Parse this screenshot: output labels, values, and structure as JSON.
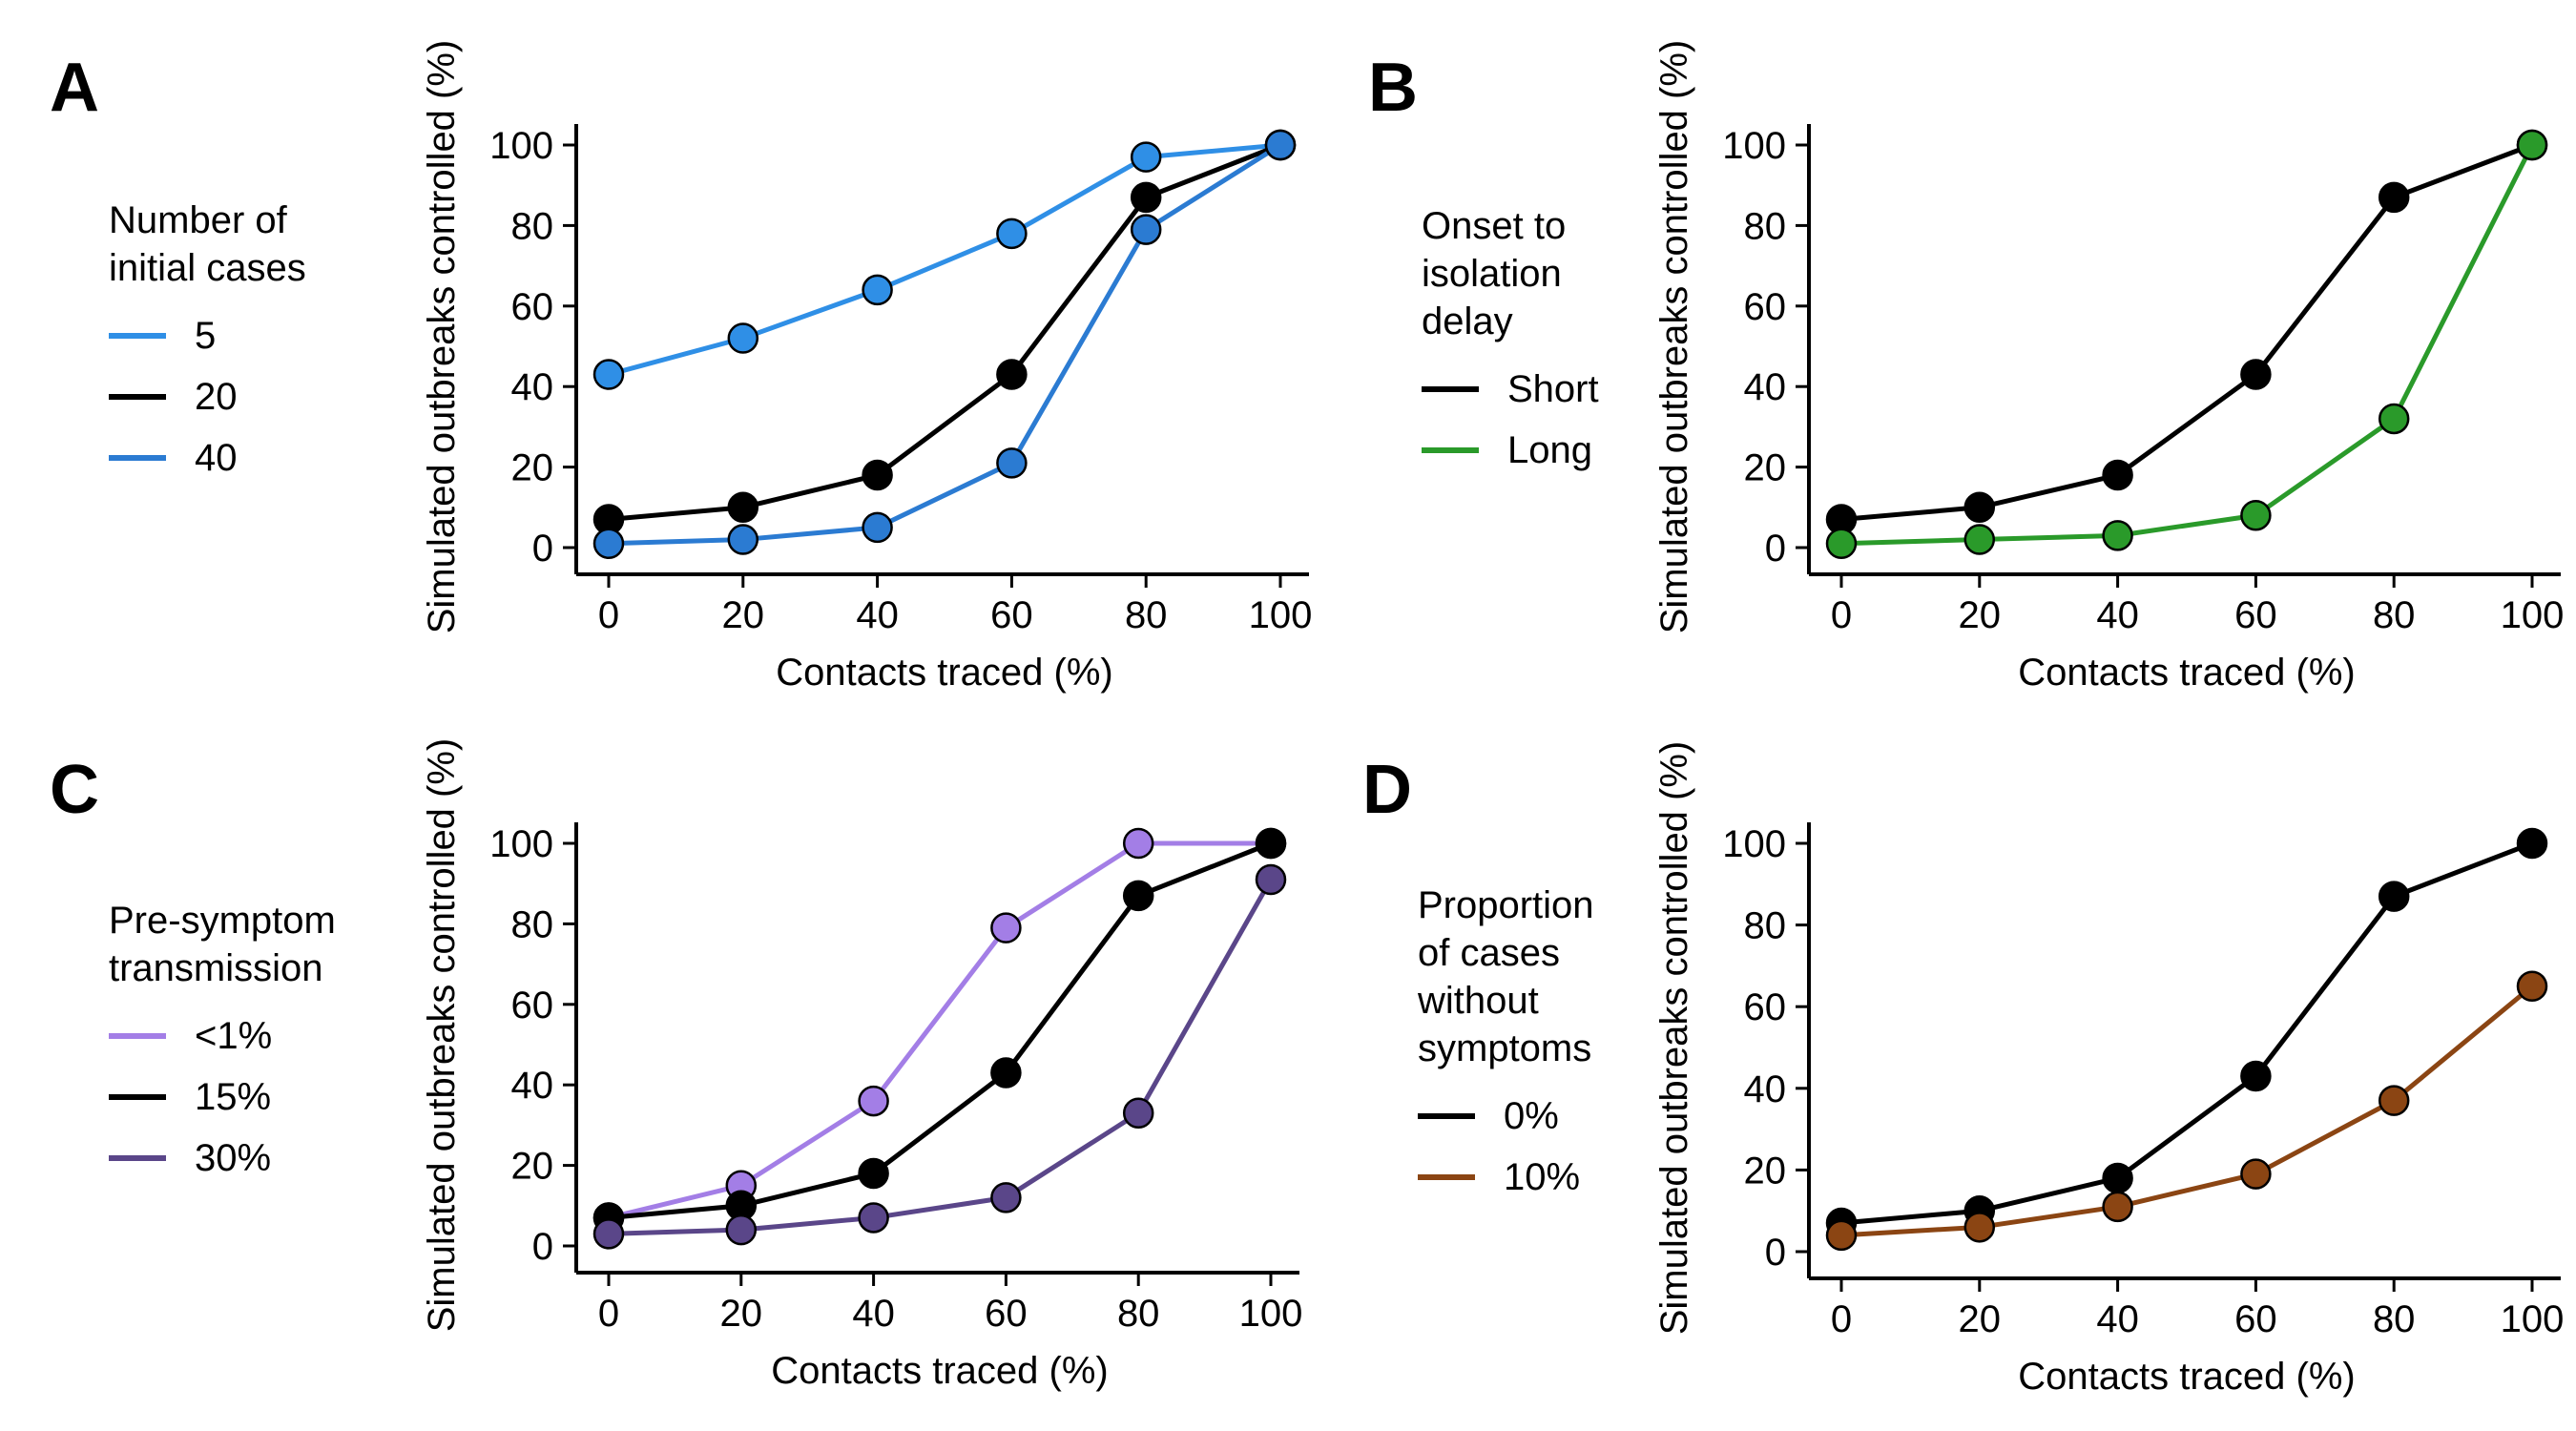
{
  "chart_data": [
    {
      "panel_label": "A",
      "type": "line",
      "legend_title": "Number of\ninitial cases",
      "xlabel": "Contacts traced (%)",
      "ylabel": "Simulated outbreaks controlled (%)",
      "x": [
        0,
        20,
        40,
        60,
        80,
        100
      ],
      "xlim": [
        0,
        100
      ],
      "ylim": [
        0,
        100
      ],
      "xticks": [
        "0",
        "20",
        "40",
        "60",
        "80",
        "100"
      ],
      "yticks": [
        "0",
        "20",
        "40",
        "60",
        "80",
        "100"
      ],
      "grid": false,
      "legend_position": "left",
      "series": [
        {
          "name": "5",
          "color": "#2f8fe6",
          "values": [
            43,
            52,
            64,
            78,
            97,
            100
          ]
        },
        {
          "name": "20",
          "color": "#000000",
          "values": [
            7,
            10,
            18,
            43,
            87,
            100
          ]
        },
        {
          "name": "40",
          "color": "#2b7bd2",
          "values": [
            1,
            2,
            5,
            21,
            79,
            100
          ]
        }
      ]
    },
    {
      "panel_label": "B",
      "type": "line",
      "legend_title": "Onset to\nisolation\ndelay",
      "xlabel": "Contacts traced (%)",
      "ylabel": "Simulated outbreaks controlled (%)",
      "x": [
        0,
        20,
        40,
        60,
        80,
        100
      ],
      "xlim": [
        0,
        100
      ],
      "ylim": [
        0,
        100
      ],
      "xticks": [
        "0",
        "20",
        "40",
        "60",
        "80",
        "100"
      ],
      "yticks": [
        "0",
        "20",
        "40",
        "60",
        "80",
        "100"
      ],
      "grid": false,
      "legend_position": "left",
      "series": [
        {
          "name": "Short",
          "color": "#000000",
          "values": [
            7,
            10,
            18,
            43,
            87,
            100
          ]
        },
        {
          "name": "Long",
          "color": "#2a9a2a",
          "values": [
            1,
            2,
            3,
            8,
            32,
            100
          ]
        }
      ]
    },
    {
      "panel_label": "C",
      "type": "line",
      "legend_title": "Pre-symptom\ntransmission",
      "xlabel": "Contacts traced (%)",
      "ylabel": "Simulated outbreaks controlled (%)",
      "x": [
        0,
        20,
        40,
        60,
        80,
        100
      ],
      "xlim": [
        0,
        100
      ],
      "ylim": [
        0,
        100
      ],
      "xticks": [
        "0",
        "20",
        "40",
        "60",
        "80",
        "100"
      ],
      "yticks": [
        "0",
        "20",
        "40",
        "60",
        "80",
        "100"
      ],
      "grid": false,
      "legend_position": "left",
      "series": [
        {
          "name": "<1%",
          "color": "#a37ee6",
          "values": [
            7,
            15,
            36,
            79,
            100,
            100
          ]
        },
        {
          "name": "15%",
          "color": "#000000",
          "values": [
            7,
            10,
            18,
            43,
            87,
            100
          ]
        },
        {
          "name": "30%",
          "color": "#5a4689",
          "values": [
            3,
            4,
            7,
            12,
            33,
            91
          ]
        }
      ]
    },
    {
      "panel_label": "D",
      "type": "line",
      "legend_title": "Proportion\nof cases\nwithout\nsymptoms",
      "xlabel": "Contacts traced (%)",
      "ylabel": "Simulated outbreaks controlled (%)",
      "x": [
        0,
        20,
        40,
        60,
        80,
        100
      ],
      "xlim": [
        0,
        100
      ],
      "ylim": [
        0,
        100
      ],
      "xticks": [
        "0",
        "20",
        "40",
        "60",
        "80",
        "100"
      ],
      "yticks": [
        "0",
        "20",
        "40",
        "60",
        "80",
        "100"
      ],
      "grid": false,
      "legend_position": "left",
      "series": [
        {
          "name": "0%",
          "color": "#000000",
          "values": [
            7,
            10,
            18,
            43,
            87,
            100
          ]
        },
        {
          "name": "10%",
          "color": "#8b4513",
          "values": [
            4,
            6,
            11,
            19,
            37,
            65
          ]
        }
      ]
    }
  ]
}
